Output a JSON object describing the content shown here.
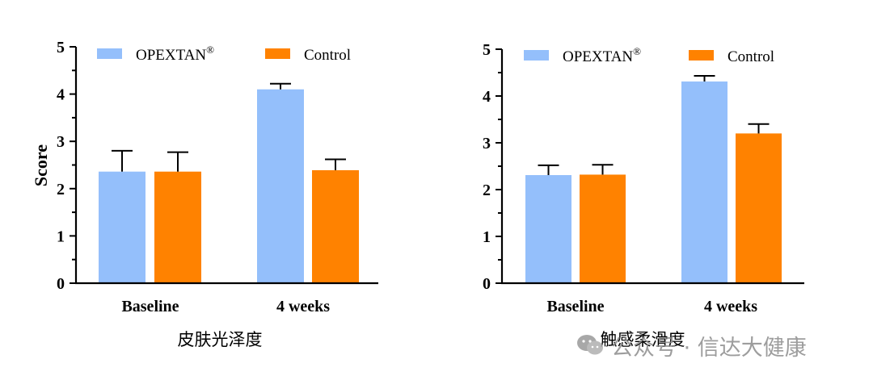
{
  "colors": {
    "opextan": "#94BFFB",
    "control": "#FF8200",
    "axis": "#000000"
  },
  "charts": [
    {
      "subtitle": "皮肤光泽度",
      "chart_data": {
        "type": "bar",
        "ylabel": "Score",
        "ylim": [
          0,
          5
        ],
        "yticks": [
          "0",
          "1",
          "2",
          "3",
          "4",
          "5"
        ],
        "categories": [
          "Baseline",
          "4 weeks"
        ],
        "legend_position": "top",
        "series": [
          {
            "name": "OPEXTAN",
            "name_sup": "®",
            "values": [
              2.36,
              4.1
            ],
            "errors": [
              0.44,
              0.12
            ]
          },
          {
            "name": "Control",
            "name_sup": "",
            "values": [
              2.36,
              2.39
            ],
            "errors": [
              0.41,
              0.23
            ]
          }
        ]
      }
    },
    {
      "subtitle": "触感柔滑度",
      "chart_data": {
        "type": "bar",
        "ylabel": "",
        "ylim": [
          0,
          5
        ],
        "yticks": [
          "0",
          "1",
          "2",
          "3",
          "4",
          "5"
        ],
        "categories": [
          "Baseline",
          "4 weeks"
        ],
        "legend_position": "top",
        "series": [
          {
            "name": "OPEXTAN",
            "name_sup": "®",
            "values": [
              2.31,
              4.31
            ],
            "errors": [
              0.21,
              0.12
            ]
          },
          {
            "name": "Control",
            "name_sup": "",
            "values": [
              2.32,
              3.2
            ],
            "errors": [
              0.21,
              0.2
            ]
          }
        ]
      }
    }
  ],
  "watermark": {
    "text": "公众号 · 信达大健康"
  }
}
